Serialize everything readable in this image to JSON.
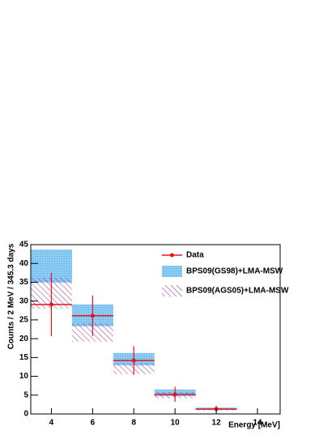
{
  "chart_data": {
    "type": "band-errorbar",
    "x_label": "Energy [MeV]",
    "y_label": "Counts / 2 MeV / 345.3 days",
    "xlim": [
      3,
      15.1
    ],
    "ylim": [
      0,
      45
    ],
    "xticks": [
      4,
      6,
      8,
      10,
      12,
      14
    ],
    "yticks": [
      0,
      5,
      10,
      15,
      20,
      25,
      30,
      35,
      40,
      45
    ],
    "bins": [
      3,
      5,
      7,
      9,
      11,
      13
    ],
    "bands": [
      {
        "name": "BPS09(GS98)+LMA-MSW",
        "color": "#8ccbf2",
        "pattern": "dots",
        "low": [
          34.9,
          23.3,
          12.9,
          4.7,
          1.1
        ],
        "high": [
          43.7,
          29.1,
          16.2,
          6.5,
          1.7
        ]
      },
      {
        "name": "BPS09(AGS05)+LMA-MSW",
        "color": "#8b1a8b",
        "pattern": "hatch",
        "low": [
          28.0,
          19.2,
          10.6,
          4.1,
          0.9
        ],
        "high": [
          36.2,
          24.1,
          13.4,
          5.8,
          1.5
        ]
      }
    ],
    "data": {
      "name": "Data",
      "color": "#e8141c",
      "x": [
        4,
        6,
        8,
        10,
        12
      ],
      "values": [
        29.1,
        26.1,
        14.2,
        5.2,
        1.3
      ],
      "errors": [
        8.4,
        5.4,
        3.8,
        2.0,
        0.9
      ]
    }
  }
}
